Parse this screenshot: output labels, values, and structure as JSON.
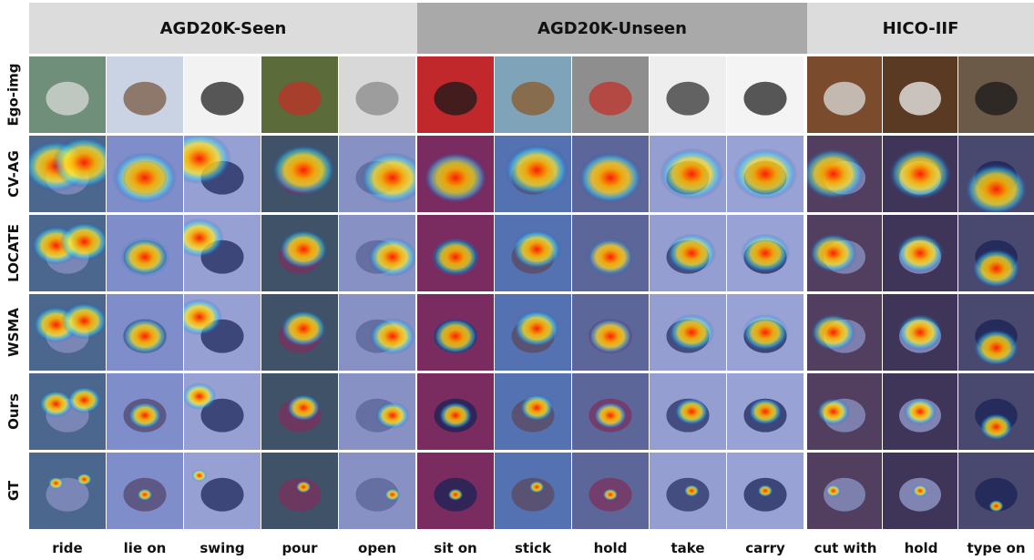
{
  "groups": [
    {
      "name": "AGD20K-Seen",
      "bg": "#dcdcdc"
    },
    {
      "name": "AGD20K-Unseen",
      "bg": "#a9a9a9"
    },
    {
      "name": "HICO-IIF",
      "bg": "#dcdcdc"
    }
  ],
  "rows": [
    "Ego-img",
    "CV-AG",
    "LOCATE",
    "WSMA",
    "Ours",
    "GT"
  ],
  "columns": [
    "ride",
    "lie on",
    "swing",
    "pour",
    "open",
    "sit on",
    "stick",
    "hold",
    "take",
    "carry",
    "cut with",
    "hold",
    "type on"
  ],
  "colors": {
    "heat_hot": "#ff2a00",
    "heat_warm": "#ffe400",
    "heat_cool": "#00c8ff",
    "overlay_blue": "#1b2fa8"
  }
}
